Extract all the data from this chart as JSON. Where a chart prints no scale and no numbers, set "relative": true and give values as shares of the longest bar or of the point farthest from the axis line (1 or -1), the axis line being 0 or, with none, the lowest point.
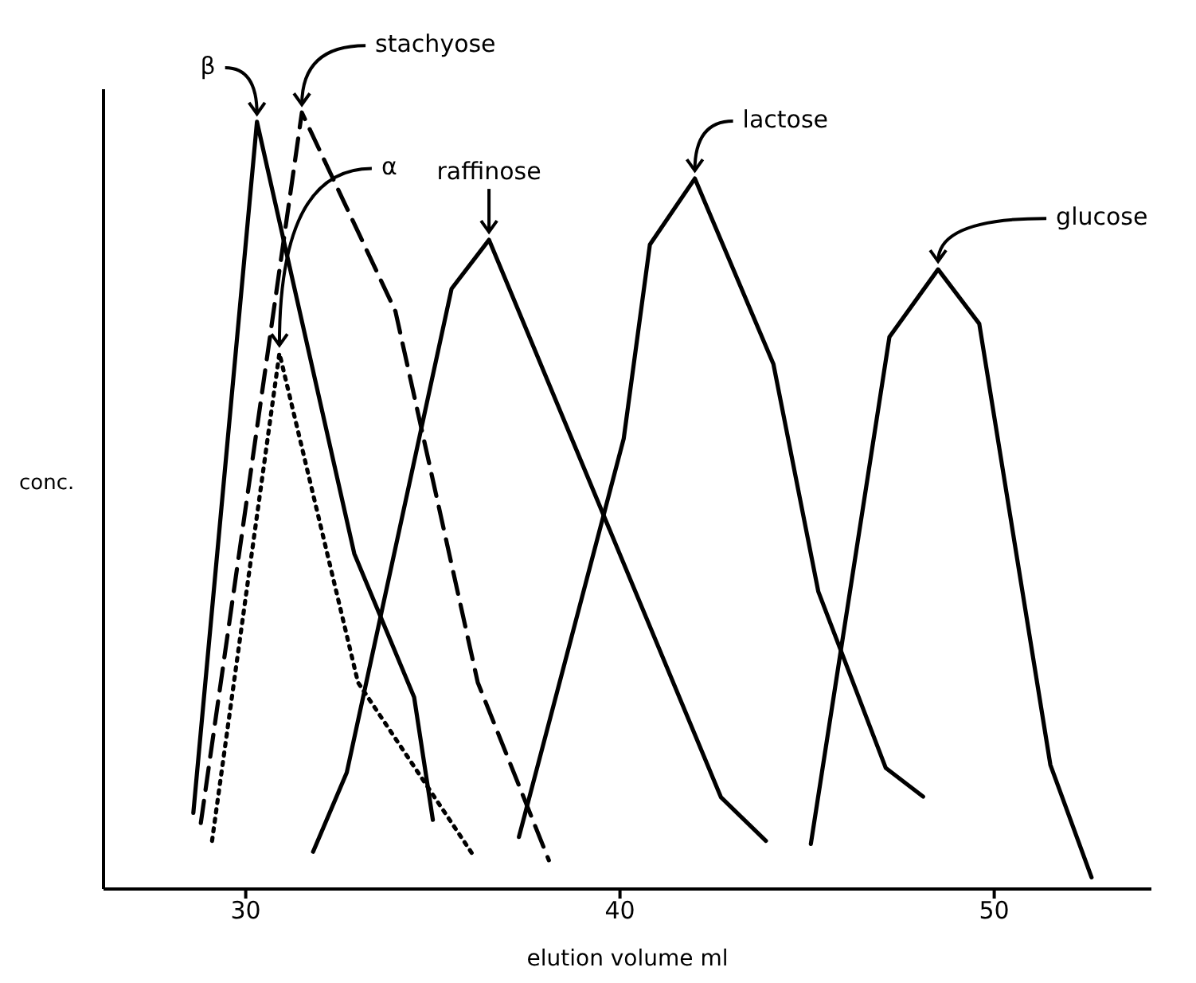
{
  "chart_data": {
    "type": "line",
    "relative": true,
    "xlabel": "elution volume ml",
    "ylabel": "conc.",
    "xlim": [
      26.2,
      54.2
    ],
    "xticks": [
      30,
      40,
      50
    ],
    "grid": false,
    "legend": false,
    "marker": "none",
    "series": [
      {
        "name": "β",
        "color": "#000000",
        "line_style": "solid",
        "x": [
          28.6,
          30.3,
          32.9,
          34.5,
          35.0
        ],
        "values": [
          0.098,
          0.988,
          0.432,
          0.247,
          0.089
        ]
      },
      {
        "name": "stachyose",
        "color": "#000000",
        "line_style": "dashed",
        "x": [
          28.8,
          31.5,
          34.0,
          36.2,
          38.1
        ],
        "values": [
          0.085,
          1.0,
          0.744,
          0.266,
          0.037
        ]
      },
      {
        "name": "α",
        "color": "#000000",
        "line_style": "dotted",
        "x": [
          29.1,
          30.9,
          33.0,
          36.1
        ],
        "values": [
          0.062,
          0.69,
          0.266,
          0.042
        ]
      },
      {
        "name": "raffinose",
        "color": "#000000",
        "line_style": "solid",
        "x": [
          31.8,
          32.7,
          35.5,
          36.5,
          42.7,
          43.9
        ],
        "values": [
          0.048,
          0.15,
          0.773,
          0.836,
          0.118,
          0.062
        ]
      },
      {
        "name": "lactose",
        "color": "#000000",
        "line_style": "solid",
        "x": [
          37.3,
          40.1,
          40.8,
          42.0,
          44.1,
          45.3,
          47.1,
          48.1
        ],
        "values": [
          0.067,
          0.58,
          0.83,
          0.915,
          0.676,
          0.383,
          0.156,
          0.119
        ]
      },
      {
        "name": "glucose",
        "color": "#000000",
        "line_style": "solid",
        "x": [
          45.1,
          47.2,
          48.5,
          49.6,
          51.5,
          52.6
        ],
        "values": [
          0.058,
          0.711,
          0.798,
          0.728,
          0.16,
          0.015
        ]
      }
    ]
  }
}
